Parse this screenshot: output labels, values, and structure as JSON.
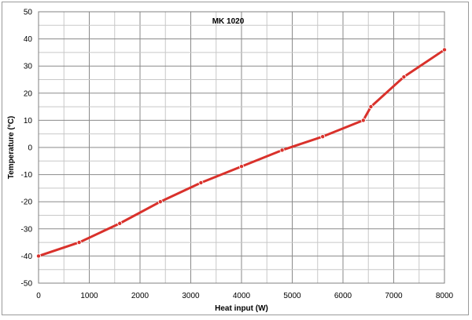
{
  "chart_data": {
    "type": "line",
    "title": "MK 1020",
    "xlabel": "Heat input (W)",
    "ylabel": "Temperature (°C)",
    "xlim": [
      0,
      8000
    ],
    "ylim": [
      -50,
      50
    ],
    "x_ticks": [
      0,
      1000,
      2000,
      3000,
      4000,
      5000,
      6000,
      7000,
      8000
    ],
    "y_ticks": [
      50,
      40,
      30,
      20,
      10,
      0,
      -10,
      -20,
      -30,
      -40,
      -50
    ],
    "grid": true,
    "legend": "none",
    "line_color": "#d9312b",
    "series": [
      {
        "x": [
          0,
          800,
          1600,
          2400,
          3200,
          4000,
          4800,
          5600,
          6400,
          6550,
          7200,
          8000
        ],
        "y": [
          -40,
          -35,
          -28,
          -20,
          -13,
          -7,
          -1,
          4,
          10,
          15,
          26,
          36
        ]
      }
    ]
  }
}
